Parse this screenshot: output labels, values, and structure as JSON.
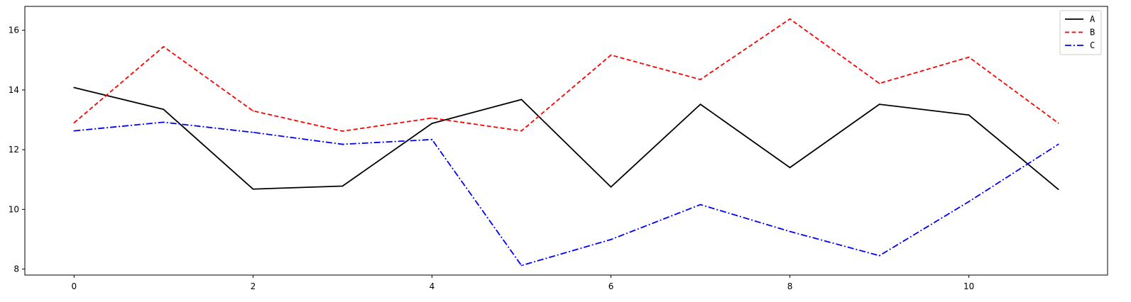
{
  "chart_data": {
    "type": "line",
    "title": "",
    "xlabel": "",
    "ylabel": "",
    "x": [
      0,
      1,
      2,
      3,
      4,
      5,
      6,
      7,
      8,
      9,
      10,
      11
    ],
    "xlim": [
      -0.55,
      11.55
    ],
    "ylim": [
      7.8,
      16.8
    ],
    "xticks": [
      0,
      2,
      4,
      6,
      8,
      10
    ],
    "yticks": [
      8,
      10,
      12,
      14,
      16
    ],
    "grid": false,
    "legend_position": "top-right",
    "series": [
      {
        "name": "A",
        "color": "#000000",
        "linestyle": "solid",
        "values": [
          14.08,
          13.35,
          10.68,
          10.78,
          12.88,
          13.68,
          10.75,
          13.52,
          11.4,
          13.52,
          13.16,
          10.67
        ]
      },
      {
        "name": "B",
        "color": "#ff0000",
        "linestyle": "dashed",
        "values": [
          12.9,
          15.45,
          13.3,
          12.62,
          13.06,
          12.63,
          15.17,
          14.35,
          16.38,
          14.22,
          15.1,
          12.89
        ]
      },
      {
        "name": "C",
        "color": "#0000ff",
        "linestyle": "dashdot",
        "values": [
          12.63,
          12.92,
          12.58,
          12.18,
          12.34,
          8.12,
          8.99,
          10.16,
          9.26,
          8.45,
          10.26,
          12.18
        ]
      }
    ]
  }
}
